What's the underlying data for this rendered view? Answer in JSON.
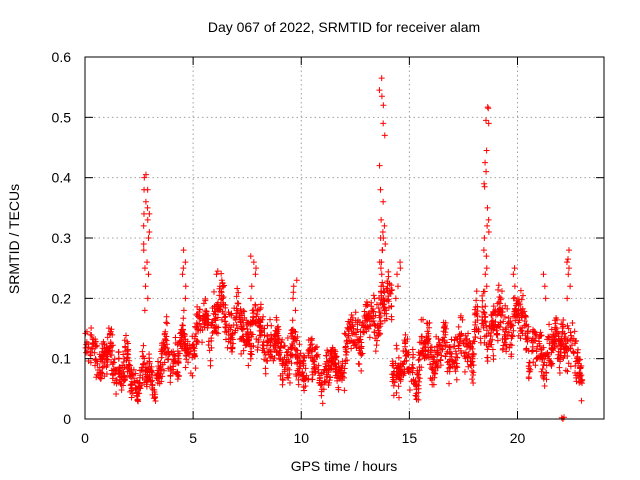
{
  "chart_data": {
    "type": "scatter",
    "title": "Day 067 of 2022, SRMTID for receiver alam",
    "xlabel": "GPS time / hours",
    "ylabel": "SRMTID / TECUs",
    "xlim": [
      0,
      24
    ],
    "ylim": [
      0,
      0.6
    ],
    "grid": true,
    "marker": "+",
    "series_color": "#ff0000",
    "x_ticks": [
      {
        "value": 0,
        "label": "0"
      },
      {
        "value": 5,
        "label": "5"
      },
      {
        "value": 10,
        "label": "10"
      },
      {
        "value": 15,
        "label": "15"
      },
      {
        "value": 20,
        "label": "20"
      }
    ],
    "y_ticks": [
      {
        "value": 0,
        "label": "0"
      },
      {
        "value": 0.1,
        "label": "0.1"
      },
      {
        "value": 0.2,
        "label": "0.2"
      },
      {
        "value": 0.3,
        "label": "0.3"
      },
      {
        "value": 0.4,
        "label": "0.4"
      },
      {
        "value": 0.5,
        "label": "0.5"
      },
      {
        "value": 0.6,
        "label": "0.6"
      }
    ],
    "baseline_segments": [
      {
        "x": [
          0.0,
          2.0
        ],
        "y": [
          0.12,
          0.08
        ],
        "spread": 0.05
      },
      {
        "x": [
          2.0,
          3.5
        ],
        "y": [
          0.07,
          0.07
        ],
        "spread": 0.035
      },
      {
        "x": [
          3.5,
          5.0
        ],
        "y": [
          0.1,
          0.12
        ],
        "spread": 0.05
      },
      {
        "x": [
          5.0,
          6.5
        ],
        "y": [
          0.14,
          0.18
        ],
        "spread": 0.06
      },
      {
        "x": [
          6.5,
          8.5
        ],
        "y": [
          0.16,
          0.14
        ],
        "spread": 0.06
      },
      {
        "x": [
          8.5,
          10.5
        ],
        "y": [
          0.12,
          0.09
        ],
        "spread": 0.05
      },
      {
        "x": [
          10.5,
          12.0
        ],
        "y": [
          0.08,
          0.09
        ],
        "spread": 0.04
      },
      {
        "x": [
          12.0,
          13.5
        ],
        "y": [
          0.12,
          0.17
        ],
        "spread": 0.05
      },
      {
        "x": [
          13.5,
          14.2
        ],
        "y": [
          0.18,
          0.2
        ],
        "spread": 0.06
      },
      {
        "x": [
          14.2,
          15.5
        ],
        "y": [
          0.09,
          0.08
        ],
        "spread": 0.05
      },
      {
        "x": [
          15.5,
          18.0
        ],
        "y": [
          0.11,
          0.12
        ],
        "spread": 0.05
      },
      {
        "x": [
          18.0,
          20.5
        ],
        "y": [
          0.15,
          0.16
        ],
        "spread": 0.06
      },
      {
        "x": [
          20.5,
          22.0
        ],
        "y": [
          0.11,
          0.12
        ],
        "spread": 0.05
      },
      {
        "x": [
          22.0,
          23.0
        ],
        "y": [
          0.14,
          0.08
        ],
        "spread": 0.06
      }
    ],
    "peaks": [
      {
        "x": 2.85,
        "values": [
          0.18,
          0.2,
          0.24,
          0.26,
          0.28,
          0.3,
          0.32,
          0.33,
          0.34,
          0.34,
          0.35,
          0.36,
          0.38,
          0.38,
          0.4,
          0.405,
          0.31,
          0.29,
          0.22,
          0.25
        ]
      },
      {
        "x": 4.55,
        "values": [
          0.18,
          0.2,
          0.22,
          0.24,
          0.25,
          0.26,
          0.28
        ]
      },
      {
        "x": 6.2,
        "values": [
          0.2,
          0.22,
          0.24,
          0.245,
          0.23,
          0.21
        ]
      },
      {
        "x": 7.8,
        "values": [
          0.2,
          0.22,
          0.24,
          0.26,
          0.27,
          0.25
        ]
      },
      {
        "x": 9.7,
        "values": [
          0.18,
          0.2,
          0.22,
          0.23,
          0.21
        ]
      },
      {
        "x": 13.75,
        "values": [
          0.22,
          0.24,
          0.25,
          0.26,
          0.28,
          0.29,
          0.3,
          0.31,
          0.32,
          0.33,
          0.36,
          0.38,
          0.42,
          0.47,
          0.49,
          0.52,
          0.535,
          0.545,
          0.565,
          0.3,
          0.28,
          0.26
        ]
      },
      {
        "x": 14.5,
        "values": [
          0.2,
          0.22,
          0.24,
          0.25,
          0.26
        ]
      },
      {
        "x": 18.55,
        "values": [
          0.22,
          0.24,
          0.25,
          0.27,
          0.28,
          0.3,
          0.31,
          0.32,
          0.33,
          0.35,
          0.385,
          0.39,
          0.41,
          0.425,
          0.445,
          0.49,
          0.495,
          0.515,
          0.517
        ]
      },
      {
        "x": 19.8,
        "values": [
          0.2,
          0.22,
          0.24,
          0.25
        ]
      },
      {
        "x": 21.3,
        "values": [
          0.2,
          0.22,
          0.24
        ]
      },
      {
        "x": 22.3,
        "values": [
          0.2,
          0.22,
          0.24,
          0.25,
          0.26,
          0.265,
          0.28
        ]
      }
    ],
    "low_points": [
      {
        "x": 22.05,
        "y": 0.002
      },
      {
        "x": 22.1,
        "y": 0.0
      },
      {
        "x": 22.15,
        "y": 0.003
      }
    ]
  }
}
